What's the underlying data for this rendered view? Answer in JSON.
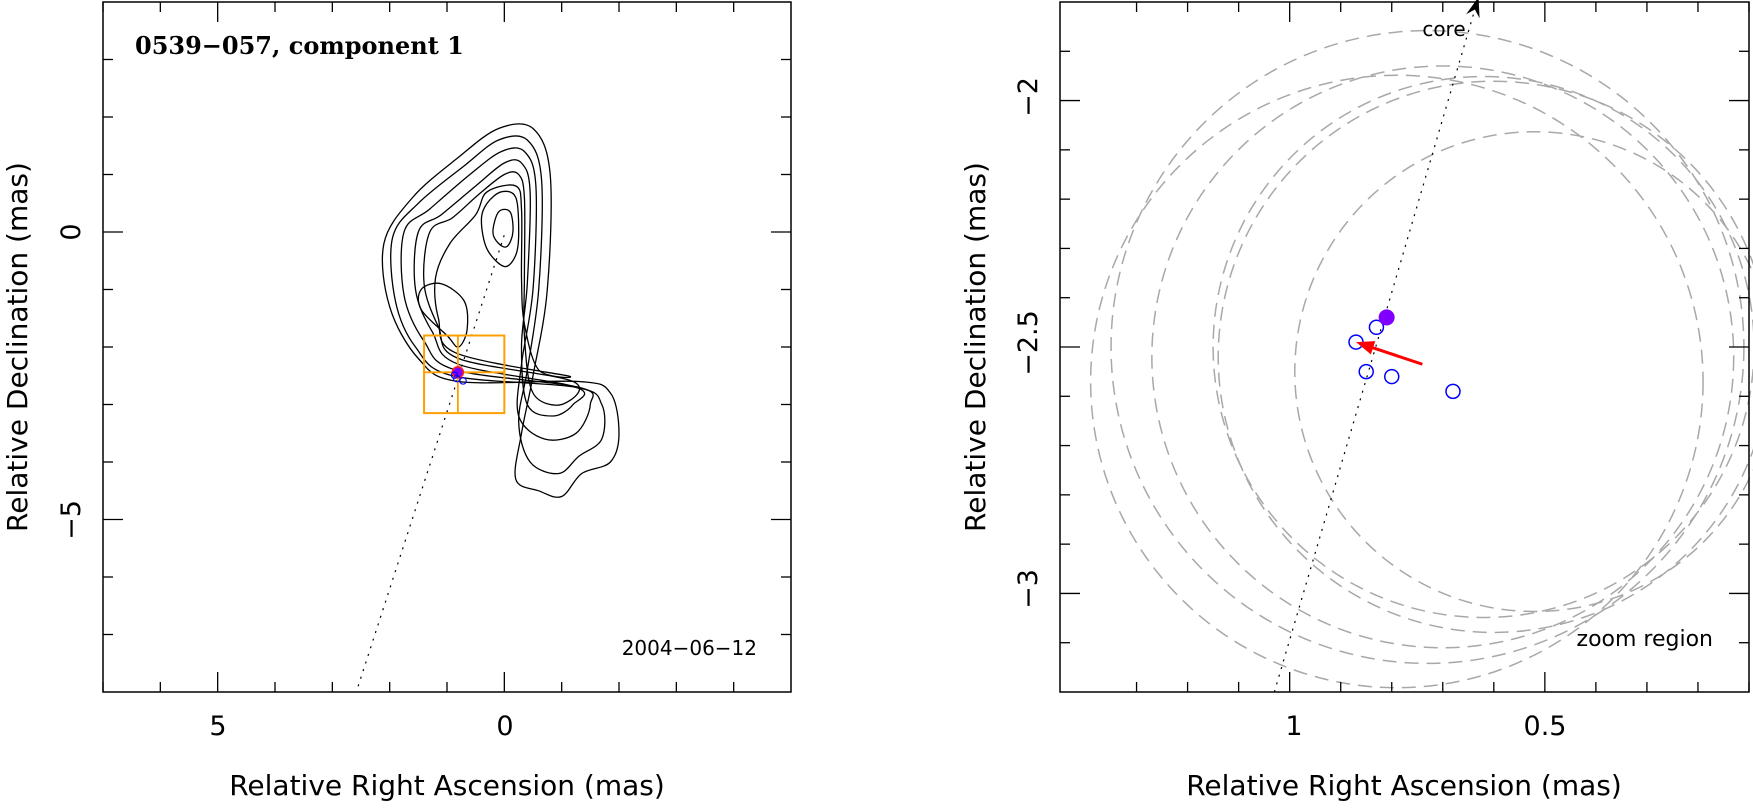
{
  "chart_data": [
    {
      "type": "scatter",
      "title": "0539−057, component 1",
      "date": "2004−06−12",
      "xlabel": "Relative Right Ascension (mas)",
      "ylabel": "Relative Declination (mas)",
      "xlim": [
        7,
        -5
      ],
      "ylim": [
        -8,
        4
      ],
      "x_ticks": [
        "5",
        "0"
      ],
      "y_ticks": [
        "0",
        "−5"
      ],
      "contours": [
        [
          [
            0.8,
            -2.6
          ],
          [
            1.5,
            -2.2
          ],
          [
            2.0,
            -1.3
          ],
          [
            2.1,
            -0.2
          ],
          [
            1.6,
            0.6
          ],
          [
            0.8,
            1.3
          ],
          [
            0.1,
            1.8
          ],
          [
            -0.5,
            1.8
          ],
          [
            -0.8,
            1.0
          ],
          [
            -0.75,
            -1.0
          ],
          [
            -0.5,
            -2.5
          ],
          [
            -0.3,
            -3.5
          ],
          [
            -0.2,
            -4.3
          ],
          [
            -0.6,
            -4.5
          ],
          [
            -1.0,
            -4.6
          ],
          [
            -1.35,
            -4.2
          ],
          [
            -1.85,
            -4.0
          ],
          [
            -2.0,
            -3.5
          ],
          [
            -1.85,
            -2.8
          ],
          [
            -1.3,
            -2.6
          ]
        ],
        [
          [
            0.9,
            -2.5
          ],
          [
            1.55,
            -2.0
          ],
          [
            1.9,
            -1.2
          ],
          [
            1.95,
            -0.1
          ],
          [
            1.5,
            0.5
          ],
          [
            0.7,
            1.15
          ],
          [
            0.1,
            1.6
          ],
          [
            -0.4,
            1.6
          ],
          [
            -0.65,
            0.9
          ],
          [
            -0.6,
            -1.0
          ],
          [
            -0.4,
            -2.4
          ],
          [
            -0.25,
            -3.3
          ],
          [
            -0.45,
            -4.0
          ],
          [
            -0.95,
            -4.2
          ],
          [
            -1.3,
            -3.9
          ],
          [
            -1.7,
            -3.6
          ],
          [
            -1.7,
            -3.0
          ],
          [
            -1.25,
            -2.7
          ]
        ],
        [
          [
            0.85,
            -2.4
          ],
          [
            1.4,
            -1.9
          ],
          [
            1.75,
            -1.1
          ],
          [
            1.75,
            0.0
          ],
          [
            1.3,
            0.4
          ],
          [
            0.6,
            1.0
          ],
          [
            0.05,
            1.4
          ],
          [
            -0.35,
            1.4
          ],
          [
            -0.55,
            0.8
          ],
          [
            -0.5,
            -1.0
          ],
          [
            -0.3,
            -2.3
          ],
          [
            -0.25,
            -3.2
          ],
          [
            -0.7,
            -3.6
          ],
          [
            -1.25,
            -3.5
          ],
          [
            -1.5,
            -3.0
          ],
          [
            -1.3,
            -2.7
          ]
        ],
        [
          [
            0.8,
            -2.3
          ],
          [
            1.25,
            -1.75
          ],
          [
            1.55,
            -1.0
          ],
          [
            1.5,
            0.0
          ],
          [
            1.1,
            0.3
          ],
          [
            0.5,
            0.8
          ],
          [
            0.0,
            1.2
          ],
          [
            -0.3,
            1.2
          ],
          [
            -0.45,
            0.7
          ],
          [
            -0.4,
            -0.9
          ],
          [
            -0.3,
            -2.0
          ],
          [
            -0.4,
            -3.0
          ],
          [
            -0.85,
            -3.2
          ],
          [
            -1.2,
            -3.0
          ],
          [
            -1.25,
            -2.7
          ]
        ],
        [
          [
            0.8,
            -2.2
          ],
          [
            1.15,
            -1.65
          ],
          [
            1.4,
            -0.9
          ],
          [
            1.3,
            0.0
          ],
          [
            0.9,
            0.25
          ],
          [
            0.45,
            0.65
          ],
          [
            0.0,
            1.0
          ],
          [
            -0.25,
            1.0
          ],
          [
            -0.35,
            0.6
          ],
          [
            -0.35,
            -0.8
          ],
          [
            -0.35,
            -1.8
          ],
          [
            -0.5,
            -2.8
          ],
          [
            -1.0,
            -3.0
          ],
          [
            -1.2,
            -2.6
          ]
        ],
        [
          [
            0.85,
            -2.1
          ],
          [
            1.15,
            -1.5
          ],
          [
            1.2,
            -0.8
          ],
          [
            0.95,
            -0.2
          ],
          [
            0.5,
            0.3
          ],
          [
            0.3,
            0.7
          ],
          [
            -0.2,
            0.8
          ],
          [
            -0.3,
            0.4
          ],
          [
            -0.3,
            -0.8
          ],
          [
            -0.35,
            -1.6
          ],
          [
            -0.6,
            -2.4
          ],
          [
            -1.1,
            -2.5
          ]
        ],
        [
          [
            1.0,
            -1.8
          ],
          [
            1.45,
            -1.35
          ],
          [
            1.45,
            -1.0
          ],
          [
            1.1,
            -0.9
          ],
          [
            0.7,
            -1.2
          ],
          [
            0.65,
            -1.7
          ],
          [
            0.8,
            -2.0
          ]
        ],
        [
          [
            0.4,
            0.2
          ],
          [
            0.3,
            0.5
          ],
          [
            0.05,
            0.7
          ],
          [
            -0.2,
            0.6
          ],
          [
            -0.25,
            0.0
          ],
          [
            -0.2,
            -0.4
          ],
          [
            0.0,
            -0.6
          ],
          [
            0.3,
            -0.3
          ]
        ],
        [
          [
            0.2,
            0.0
          ],
          [
            0.1,
            0.35
          ],
          [
            -0.1,
            0.35
          ],
          [
            -0.15,
            0.0
          ],
          [
            -0.05,
            -0.25
          ],
          [
            0.1,
            -0.2
          ]
        ]
      ],
      "zoom_box": {
        "ra_min": 0.0,
        "ra_max": 1.4,
        "dec_min": -3.15,
        "dec_max": -1.8
      },
      "marker": {
        "ra": 0.81,
        "dec": -2.44,
        "color": "#8000ff"
      },
      "core_track": [
        [
          2.55,
          -7.9
        ],
        [
          0.0,
          -0.05
        ]
      ]
    },
    {
      "type": "scatter",
      "xlabel": "Relative Right Ascension (mas)",
      "ylabel": "Relative Declination (mas)",
      "xlim": [
        1.45,
        0.1
      ],
      "ylim": [
        -3.2,
        -1.8
      ],
      "x_ticks": [
        "1",
        "0.5"
      ],
      "y_ticks": [
        "−2",
        "−2.5",
        "−3"
      ],
      "core_label": "core",
      "zoom_label": "zoom region",
      "filled_point": {
        "ra": 0.81,
        "dec": -2.44,
        "color": "#8000ff"
      },
      "open_points": [
        {
          "ra": 0.87,
          "dec": -2.49
        },
        {
          "ra": 0.83,
          "dec": -2.46
        },
        {
          "ra": 0.85,
          "dec": -2.55
        },
        {
          "ra": 0.8,
          "dec": -2.56
        },
        {
          "ra": 0.68,
          "dec": -2.59
        }
      ],
      "open_point_color": "#0000ff",
      "arrow": {
        "from": [
          0.74,
          -2.535
        ],
        "to": [
          0.87,
          -2.49
        ],
        "color": "#ff0000"
      },
      "core_track": [
        [
          1.03,
          -3.2
        ],
        [
          0.63,
          -1.79
        ]
      ],
      "uncertainty_circles": [
        {
          "ra": 0.79,
          "dec": -2.57,
          "r": 0.6
        },
        {
          "ra": 0.73,
          "dec": -2.5,
          "r": 0.62
        },
        {
          "ra": 0.7,
          "dec": -2.52,
          "r": 0.57
        },
        {
          "ra": 0.62,
          "dec": -2.5,
          "r": 0.53
        },
        {
          "ra": 0.6,
          "dec": -2.52,
          "r": 0.54
        },
        {
          "ra": 0.52,
          "dec": -2.55,
          "r": 0.47
        }
      ],
      "circle_color": "#a8a8a8"
    }
  ]
}
